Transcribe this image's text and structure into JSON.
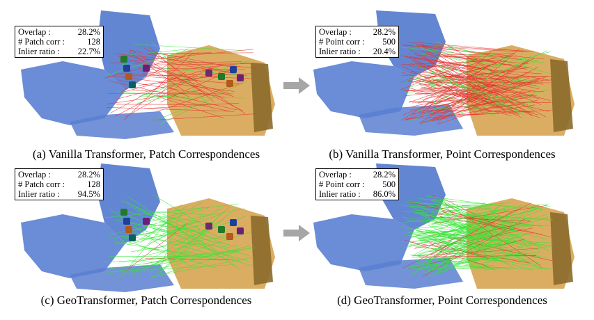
{
  "panels": [
    {
      "id": "a",
      "caption": "(a) Vanilla Transformer, Patch Correspondences",
      "stats": [
        {
          "label": "Overlap :",
          "value": "28.2%"
        },
        {
          "label": "# Patch corr :",
          "value": "128"
        },
        {
          "label": "Inlier ratio :",
          "value": "22.7%"
        }
      ],
      "inlier_ratio": 0.227,
      "kind": "patch"
    },
    {
      "id": "b",
      "caption": "(b) Vanilla Transformer, Point Correspondences",
      "stats": [
        {
          "label": "Overlap :",
          "value": "28.2%"
        },
        {
          "label": "# Point corr :",
          "value": "500"
        },
        {
          "label": "Inlier ratio :",
          "value": "20.4%"
        }
      ],
      "inlier_ratio": 0.204,
      "kind": "point"
    },
    {
      "id": "c",
      "caption": "(c) GeoTransformer, Patch Correspondences",
      "stats": [
        {
          "label": "Overlap :",
          "value": "28.2%"
        },
        {
          "label": "# Patch corr :",
          "value": "128"
        },
        {
          "label": "Inlier ratio :",
          "value": "94.5%"
        }
      ],
      "inlier_ratio": 0.945,
      "kind": "patch"
    },
    {
      "id": "d",
      "caption": "(d) GeoTransformer, Point Correspondences",
      "stats": [
        {
          "label": "Overlap :",
          "value": "28.2%"
        },
        {
          "label": "# Point corr :",
          "value": "500"
        },
        {
          "label": "Inlier ratio :",
          "value": "86.0%"
        }
      ],
      "inlier_ratio": 0.86,
      "kind": "point"
    }
  ],
  "colors": {
    "source_cloud": "#5b7fd1",
    "target_cloud": "#d9a95a",
    "inlier": "#33e633",
    "outlier": "#e63333",
    "arrow": "#a6a6a6"
  }
}
